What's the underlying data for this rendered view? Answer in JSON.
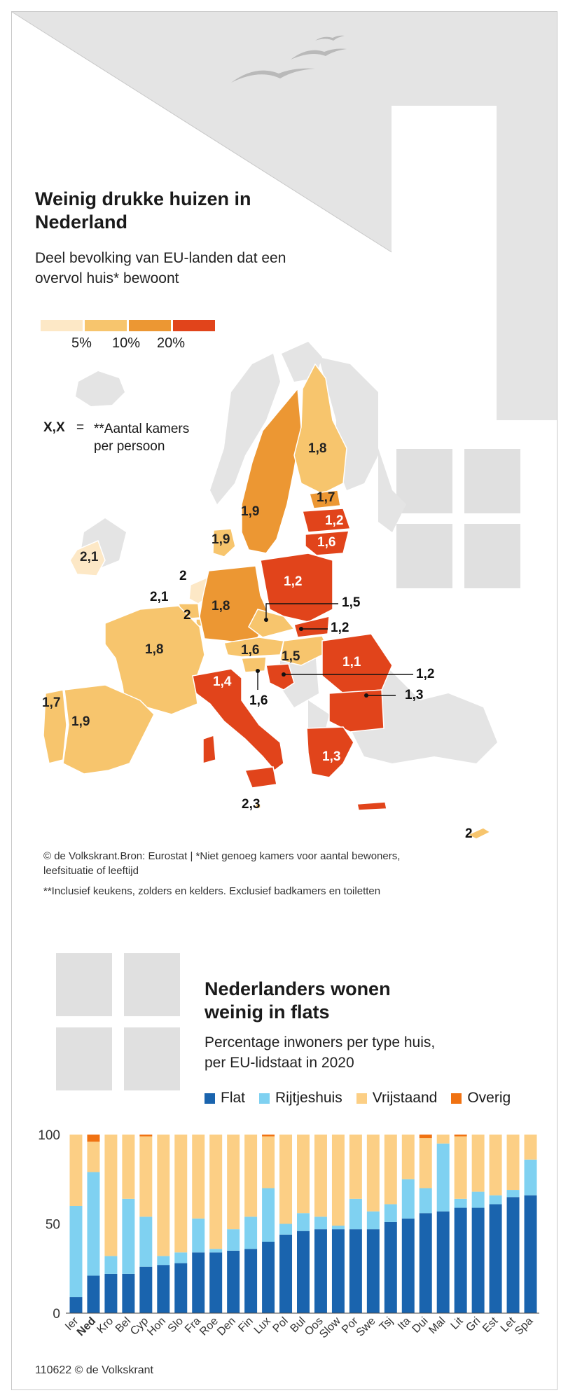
{
  "top": {
    "title_line1": "Weinig drukke huizen in",
    "title_line2": "Nederland",
    "subtitle_line1": "Deel bevolking van EU-landen dat een",
    "subtitle_line2": "overvol huis* bewoont",
    "scale_labels": [
      "5%",
      "10%",
      "20%"
    ],
    "scale_colors": [
      "#fde8c6",
      "#f7c56d",
      "#ec9733",
      "#e1441b"
    ],
    "key_symbol": "X,X",
    "key_equals": "=",
    "key_line1": "**Aantal kamers",
    "key_line2": "per persoon",
    "source_line1": "© de Volkskrant.Bron: Eurostat | *Niet genoeg kamers voor aantal bewoners,",
    "source_line2": "leefsituatie of leeftijd",
    "source_line3": "**Inclusief keukens, zolders en kelders. Exclusief badkamers en toiletten"
  },
  "map_labels": {
    "ie": "2,1",
    "nl": "2",
    "be": "2,1",
    "lu": "2",
    "fr": "1,8",
    "pt": "1,7",
    "es": "1,9",
    "de": "1,8",
    "dk": "1,9",
    "se": "1,9",
    "fi": "1,8",
    "ee": "1,7",
    "lv": "1,2",
    "lt": "1,6",
    "pl": "1,2",
    "cz": "1,5",
    "sk": "1,2",
    "at": "1,6",
    "hu": "1,5",
    "si": "1,6",
    "hr": "1,2",
    "ro": "1,1",
    "bg": "1,3",
    "it": "1,4",
    "gr": "1,3",
    "mt": "2,3",
    "cy": "2"
  },
  "bottom": {
    "title_line1": "Nederlanders wonen",
    "title_line2": "weinig in flats",
    "subtitle_line1": "Percentage inwoners per type huis,",
    "subtitle_line2": "per EU-lidstaat in 2020",
    "credit": "110622 © de Volkskrant"
  },
  "chart_data": {
    "type": "bar",
    "stacked": true,
    "ylim": [
      0,
      100
    ],
    "yticks": [
      0,
      50,
      100
    ],
    "categories": [
      "Ier",
      "Ned",
      "Kro",
      "Bel",
      "Cyp",
      "Hon",
      "Slo",
      "Fra",
      "Roe",
      "Den",
      "Fin",
      "Lux",
      "Pol",
      "Bul",
      "Oos",
      "Slow",
      "Por",
      "Swe",
      "Tsj",
      "Ita",
      "Dui",
      "Mal",
      "Lit",
      "Gri",
      "Est",
      "Let",
      "Spa"
    ],
    "highlight": "Ned",
    "series": [
      {
        "name": "Flat",
        "color": "#1a64ae",
        "values": [
          9,
          21,
          22,
          22,
          26,
          27,
          28,
          34,
          34,
          35,
          36,
          40,
          44,
          46,
          47,
          47,
          47,
          47,
          51,
          53,
          56,
          57,
          59,
          59,
          61,
          65,
          66
        ]
      },
      {
        "name": "Rijtjeshuis",
        "color": "#7fd1f1",
        "values": [
          51,
          58,
          10,
          42,
          28,
          5,
          6,
          19,
          2,
          12,
          18,
          30,
          6,
          10,
          7,
          2,
          17,
          10,
          10,
          22,
          14,
          38,
          5,
          9,
          5,
          4,
          20
        ]
      },
      {
        "name": "Vrijstaand",
        "color": "#fccf85",
        "values": [
          40,
          17,
          68,
          36,
          45,
          68,
          66,
          47,
          64,
          53,
          46,
          29,
          50,
          44,
          46,
          51,
          36,
          43,
          39,
          25,
          28,
          5,
          35,
          32,
          34,
          31,
          14
        ]
      },
      {
        "name": "Overig",
        "color": "#f07212",
        "values": [
          0,
          4,
          0,
          0,
          1,
          0,
          0,
          0,
          0,
          0,
          0,
          1,
          0,
          0,
          0,
          0,
          0,
          0,
          0,
          0,
          2,
          0,
          1,
          0,
          0,
          0,
          0
        ]
      }
    ]
  }
}
